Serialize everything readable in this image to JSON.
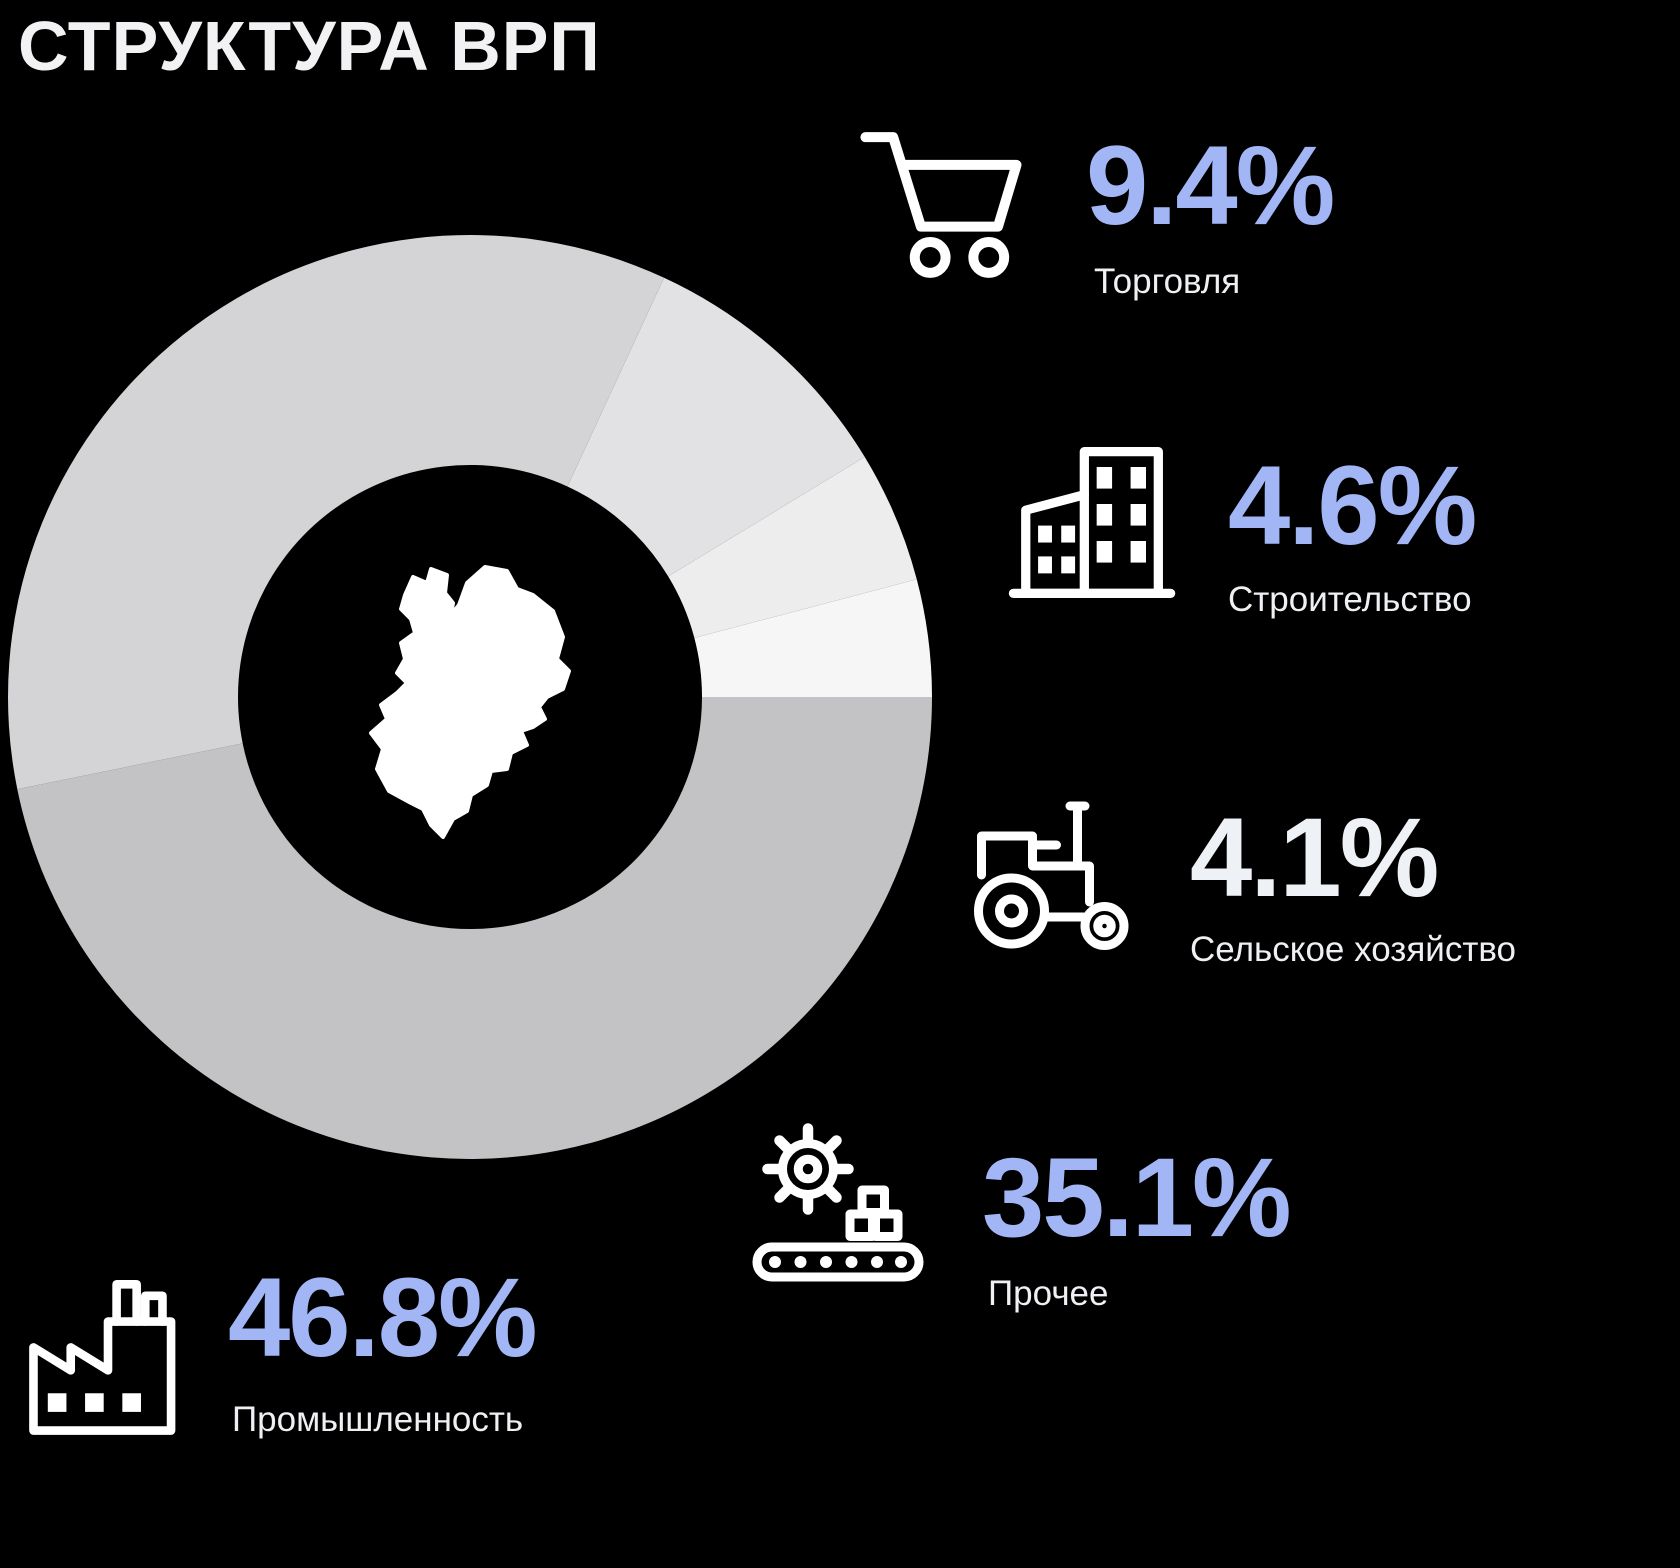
{
  "title": "СТРУКТУРА ВРП",
  "colors": {
    "background": "#000000",
    "accent_blue": "#a2b6f6",
    "text_white": "#eef0f3"
  },
  "chart_data": {
    "type": "pie",
    "donut": true,
    "title": "СТРУКТУРА ВРП",
    "direction": "clockwise",
    "start_angle_deg": 0,
    "legend_position": "right-and-bottom",
    "segments": [
      {
        "id": "industry",
        "label": "Промышленность",
        "value": 46.8,
        "display": "46.8%",
        "color": "#c3c3c5",
        "value_color": "#a2b6f6",
        "icon": "factory-icon"
      },
      {
        "id": "other",
        "label": "Прочее",
        "value": 35.1,
        "display": "35.1%",
        "color": "#d4d4d6",
        "value_color": "#a2b6f6",
        "icon": "gear-conveyor-icon"
      },
      {
        "id": "trade",
        "label": "Торговля",
        "value": 9.4,
        "display": "9.4%",
        "color": "#e2e2e4",
        "value_color": "#a2b6f6",
        "icon": "cart-icon"
      },
      {
        "id": "construction",
        "label": "Строительство",
        "value": 4.6,
        "display": "4.6%",
        "color": "#ededee",
        "value_color": "#a2b6f6",
        "icon": "building-icon"
      },
      {
        "id": "agriculture",
        "label": "Сельское хозяйство",
        "value": 4.1,
        "display": "4.1%",
        "color": "#f6f6f7",
        "value_color": "#eef1f5",
        "icon": "tractor-icon"
      }
    ]
  }
}
